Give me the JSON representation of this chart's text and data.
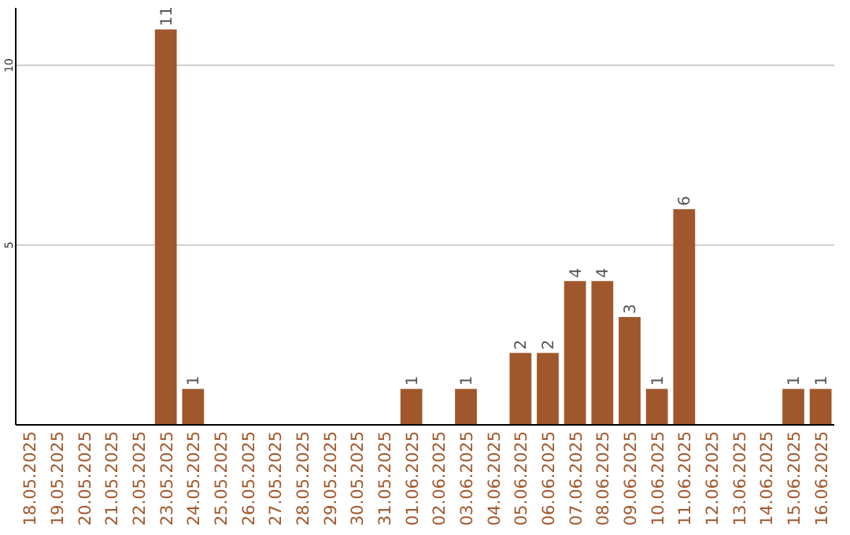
{
  "chart_data": {
    "type": "bar",
    "categories": [
      "18.05.2025",
      "19.05.2025",
      "20.05.2025",
      "21.05.2025",
      "22.05.2025",
      "23.05.2025",
      "24.05.2025",
      "25.05.2025",
      "26.05.2025",
      "27.05.2025",
      "28.05.2025",
      "29.05.2025",
      "30.05.2025",
      "31.05.2025",
      "01.06.2025",
      "02.06.2025",
      "03.06.2025",
      "04.06.2025",
      "05.06.2025",
      "06.06.2025",
      "07.06.2025",
      "08.06.2025",
      "09.06.2025",
      "10.06.2025",
      "11.06.2025",
      "12.06.2025",
      "13.06.2025",
      "14.06.2025",
      "15.06.2025",
      "16.06.2025"
    ],
    "values": [
      0,
      0,
      0,
      0,
      0,
      11,
      1,
      0,
      0,
      0,
      0,
      0,
      0,
      0,
      1,
      0,
      1,
      0,
      2,
      2,
      4,
      4,
      3,
      1,
      6,
      0,
      0,
      0,
      1,
      1
    ],
    "value_labels": [
      null,
      null,
      null,
      null,
      null,
      "11",
      "1",
      null,
      null,
      null,
      null,
      null,
      null,
      null,
      "1",
      null,
      "1",
      null,
      "2",
      "2",
      "4",
      "4",
      "3",
      "1",
      "6",
      null,
      null,
      null,
      "1",
      "1"
    ],
    "color": "#a0572b",
    "ylim": [
      0,
      11.6
    ],
    "yticks": [
      5,
      10
    ],
    "grid": "y"
  }
}
